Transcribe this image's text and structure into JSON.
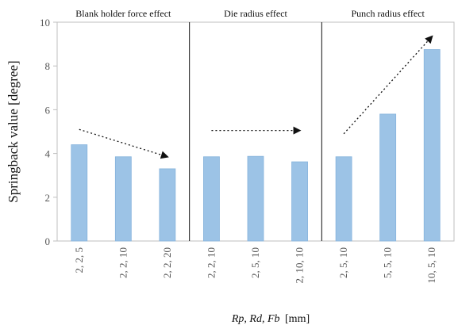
{
  "chart_data": {
    "type": "bar",
    "categories": [
      "2, 2, 5",
      "2, 2, 10",
      "2, 2, 20",
      "2, 2, 10",
      "2, 5, 10",
      "2, 10, 10",
      "2, 5, 10",
      "5, 5, 10",
      "10, 5, 10"
    ],
    "values": [
      4.4,
      3.85,
      3.3,
      3.85,
      3.87,
      3.62,
      3.85,
      5.8,
      8.75
    ],
    "ylim": [
      0,
      10
    ],
    "yticks": [
      0,
      2,
      4,
      6,
      8,
      10
    ],
    "ylabel": "Springback value [degree]",
    "xlabel_italic": "Rp, Rd, Fb",
    "xlabel_unit": "[mm]",
    "grid": false,
    "bar_color": "#9cc3e6",
    "bar_edge_color": "#86b3dc",
    "panels": [
      {
        "title": "Blank holder force effect",
        "start": 0,
        "end": 3
      },
      {
        "title": "Die radius effect",
        "start": 3,
        "end": 6
      },
      {
        "title": "Punch radius effect",
        "start": 6,
        "end": 9
      }
    ],
    "trend_arrows": [
      {
        "panel": "Blank holder force effect",
        "from": [
          0,
          5.1
        ],
        "to": [
          2,
          3.85
        ]
      },
      {
        "panel": "Die radius effect",
        "from": [
          3,
          5.05
        ],
        "to": [
          5,
          5.05
        ]
      },
      {
        "panel": "Punch radius effect",
        "from": [
          6,
          4.9
        ],
        "to": [
          8,
          9.35
        ]
      }
    ]
  }
}
